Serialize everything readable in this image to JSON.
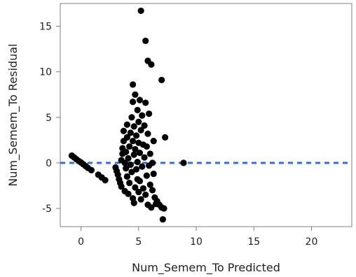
{
  "chart_data": {
    "type": "scatter",
    "xlabel": "Num_Semem_To Predicted",
    "ylabel": "Num_Semem_To Residual",
    "xlim": [
      -1.8,
      23.5
    ],
    "ylim": [
      -7,
      17.5
    ],
    "x_ticks": [
      0,
      5,
      10,
      15,
      20
    ],
    "y_ticks": [
      -5,
      0,
      5,
      10,
      15
    ],
    "grid": false,
    "reference_line": {
      "y": 0,
      "style": "dashed",
      "color": "#2f6fe3"
    },
    "point_color": "#000000",
    "series": [
      {
        "points": [
          [
            -0.8,
            0.8
          ],
          [
            -0.6,
            0.6
          ],
          [
            -0.4,
            0.4
          ],
          [
            -0.2,
            0.2
          ],
          [
            0.0,
            0.05
          ],
          [
            0.2,
            -0.15
          ],
          [
            0.4,
            -0.35
          ],
          [
            0.6,
            -0.55
          ],
          [
            0.9,
            -0.8
          ],
          [
            1.5,
            -1.3
          ],
          [
            1.8,
            -1.6
          ],
          [
            2.1,
            -1.9
          ],
          [
            3.0,
            -0.5
          ],
          [
            3.1,
            -0.9
          ],
          [
            3.2,
            -1.3
          ],
          [
            3.3,
            -1.8
          ],
          [
            3.4,
            -2.2
          ],
          [
            3.5,
            -2.6
          ],
          [
            3.5,
            0.3
          ],
          [
            3.6,
            1.0
          ],
          [
            3.6,
            1.6
          ],
          [
            3.7,
            2.4
          ],
          [
            3.7,
            3.5
          ],
          [
            3.8,
            -3.1
          ],
          [
            3.8,
            0.0
          ],
          [
            3.9,
            -0.6
          ],
          [
            3.9,
            1.2
          ],
          [
            4.0,
            -1.5
          ],
          [
            4.0,
            2.8
          ],
          [
            4.0,
            4.2
          ],
          [
            4.1,
            -3.4
          ],
          [
            4.1,
            0.5
          ],
          [
            4.2,
            -2.2
          ],
          [
            4.2,
            1.8
          ],
          [
            4.3,
            3.3
          ],
          [
            4.3,
            -0.2
          ],
          [
            4.4,
            -1.0
          ],
          [
            4.4,
            5.0
          ],
          [
            4.5,
            -3.9
          ],
          [
            4.5,
            2.4
          ],
          [
            4.5,
            6.7
          ],
          [
            4.5,
            8.6
          ],
          [
            4.6,
            4.0
          ],
          [
            4.6,
            -4.4
          ],
          [
            4.6,
            0.9
          ],
          [
            4.7,
            -2.7
          ],
          [
            4.7,
            1.5
          ],
          [
            4.7,
            7.5
          ],
          [
            4.8,
            3.0
          ],
          [
            4.8,
            -0.7
          ],
          [
            4.9,
            5.8
          ],
          [
            4.9,
            -1.8
          ],
          [
            4.9,
            0.1
          ],
          [
            5.0,
            -3.2
          ],
          [
            5.0,
            2.2
          ],
          [
            5.0,
            4.5
          ],
          [
            5.1,
            -2.0
          ],
          [
            5.1,
            1.1
          ],
          [
            5.1,
            6.9
          ],
          [
            5.2,
            -4.0
          ],
          [
            5.2,
            3.6
          ],
          [
            5.2,
            16.7
          ],
          [
            5.3,
            -0.4
          ],
          [
            5.3,
            5.2
          ],
          [
            5.4,
            -2.8
          ],
          [
            5.4,
            2.0
          ],
          [
            5.5,
            4.1
          ],
          [
            5.5,
            0.6
          ],
          [
            5.6,
            -3.5
          ],
          [
            5.6,
            6.6
          ],
          [
            5.6,
            13.4
          ],
          [
            5.7,
            -1.4
          ],
          [
            5.7,
            1.8
          ],
          [
            5.8,
            -4.6
          ],
          [
            5.8,
            3.2
          ],
          [
            5.8,
            11.2
          ],
          [
            5.9,
            5.4
          ],
          [
            5.9,
            -0.3
          ],
          [
            6.0,
            -2.4
          ],
          [
            6.0,
            1.0
          ],
          [
            6.1,
            -4.9
          ],
          [
            6.1,
            10.8
          ],
          [
            6.2,
            -3.0
          ],
          [
            6.2,
            0.0
          ],
          [
            6.3,
            -1.2
          ],
          [
            6.3,
            2.4
          ],
          [
            6.4,
            -3.8
          ],
          [
            6.5,
            -4.5
          ],
          [
            6.6,
            -4.2
          ],
          [
            6.8,
            -4.6
          ],
          [
            7.0,
            -4.9
          ],
          [
            7.0,
            9.1
          ],
          [
            7.1,
            -6.2
          ],
          [
            7.2,
            -5.0
          ],
          [
            7.3,
            2.8
          ],
          [
            8.9,
            0.0
          ]
        ]
      }
    ]
  }
}
